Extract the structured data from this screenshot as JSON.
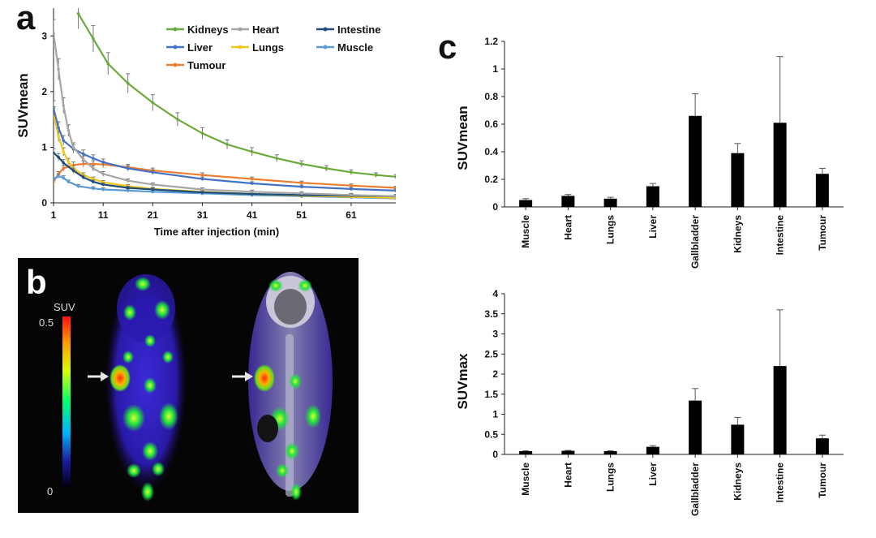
{
  "panels": {
    "a": "a",
    "b": "b",
    "c": "c"
  },
  "colors": {
    "Kidneys": "#6aaa3a",
    "Heart": "#a6a6a6",
    "Intestine": "#1f4e79",
    "Liver": "#4472c4",
    "Lungs": "#f5c518",
    "Muscle": "#5b9bd5",
    "Tumour": "#ed7d31"
  },
  "image_panel": {
    "colorbar_title": "SUV",
    "colorbar_max": "0.5",
    "colorbar_min": "0"
  },
  "chart_data": [
    {
      "id": "a",
      "type": "line",
      "title": "",
      "xlabel": "Time after injection (min)",
      "ylabel": "SUVmean",
      "xlim": [
        1,
        70
      ],
      "ylim": [
        0,
        3.5
      ],
      "xticks": [
        "1",
        "11",
        "21",
        "31",
        "41",
        "51",
        "61"
      ],
      "yticks": [
        "0",
        "1",
        "2",
        "3"
      ],
      "legend_position": "top-right",
      "series": [
        {
          "name": "Kidneys",
          "points": [
            [
              6,
              3.4
            ],
            [
              9,
              2.95
            ],
            [
              12,
              2.5
            ],
            [
              16,
              2.15
            ],
            [
              21,
              1.8
            ],
            [
              26,
              1.5
            ],
            [
              31,
              1.25
            ],
            [
              36,
              1.05
            ],
            [
              41,
              0.92
            ],
            [
              46,
              0.8
            ],
            [
              51,
              0.7
            ],
            [
              56,
              0.62
            ],
            [
              61,
              0.55
            ],
            [
              66,
              0.5
            ],
            [
              70,
              0.47
            ]
          ]
        },
        {
          "name": "Heart",
          "points": [
            [
              1,
              3.05
            ],
            [
              2,
              2.4
            ],
            [
              3,
              1.75
            ],
            [
              4,
              1.3
            ],
            [
              5,
              1.0
            ],
            [
              7,
              0.78
            ],
            [
              9,
              0.62
            ],
            [
              11,
              0.52
            ],
            [
              16,
              0.4
            ],
            [
              21,
              0.33
            ],
            [
              31,
              0.24
            ],
            [
              41,
              0.2
            ],
            [
              51,
              0.17
            ],
            [
              61,
              0.14
            ],
            [
              70,
              0.12
            ]
          ]
        },
        {
          "name": "Intestine",
          "points": [
            [
              1,
              0.9
            ],
            [
              2,
              0.82
            ],
            [
              3,
              0.72
            ],
            [
              5,
              0.58
            ],
            [
              7,
              0.46
            ],
            [
              9,
              0.38
            ],
            [
              11,
              0.33
            ],
            [
              16,
              0.27
            ],
            [
              21,
              0.24
            ],
            [
              31,
              0.19
            ],
            [
              41,
              0.16
            ],
            [
              51,
              0.14
            ],
            [
              61,
              0.13
            ],
            [
              70,
              0.12
            ]
          ]
        },
        {
          "name": "Liver",
          "points": [
            [
              1,
              1.7
            ],
            [
              2,
              1.35
            ],
            [
              3,
              1.12
            ],
            [
              5,
              0.97
            ],
            [
              7,
              0.88
            ],
            [
              9,
              0.8
            ],
            [
              11,
              0.73
            ],
            [
              16,
              0.62
            ],
            [
              21,
              0.55
            ],
            [
              31,
              0.43
            ],
            [
              41,
              0.35
            ],
            [
              51,
              0.29
            ],
            [
              61,
              0.25
            ],
            [
              70,
              0.22
            ]
          ]
        },
        {
          "name": "Lungs",
          "points": [
            [
              1,
              1.6
            ],
            [
              2,
              1.2
            ],
            [
              3,
              0.92
            ],
            [
              4,
              0.74
            ],
            [
              5,
              0.62
            ],
            [
              7,
              0.5
            ],
            [
              9,
              0.43
            ],
            [
              11,
              0.37
            ],
            [
              16,
              0.3
            ],
            [
              21,
              0.25
            ],
            [
              31,
              0.2
            ],
            [
              41,
              0.16
            ],
            [
              51,
              0.13
            ],
            [
              61,
              0.11
            ],
            [
              70,
              0.09
            ]
          ]
        },
        {
          "name": "Muscle",
          "points": [
            [
              1,
              0.42
            ],
            [
              2,
              0.48
            ],
            [
              3,
              0.45
            ],
            [
              4,
              0.38
            ],
            [
              6,
              0.3
            ],
            [
              9,
              0.26
            ],
            [
              11,
              0.24
            ],
            [
              16,
              0.22
            ],
            [
              21,
              0.2
            ],
            [
              31,
              0.17
            ],
            [
              41,
              0.14
            ],
            [
              51,
              0.12
            ],
            [
              61,
              0.1
            ],
            [
              70,
              0.08
            ]
          ]
        },
        {
          "name": "Tumour",
          "points": [
            [
              1,
              0.38
            ],
            [
              2,
              0.52
            ],
            [
              3,
              0.62
            ],
            [
              5,
              0.68
            ],
            [
              7,
              0.7
            ],
            [
              9,
              0.7
            ],
            [
              11,
              0.69
            ],
            [
              16,
              0.64
            ],
            [
              21,
              0.58
            ],
            [
              31,
              0.5
            ],
            [
              41,
              0.43
            ],
            [
              51,
              0.36
            ],
            [
              61,
              0.31
            ],
            [
              70,
              0.27
            ]
          ]
        }
      ]
    },
    {
      "id": "c-top",
      "type": "bar",
      "title": "",
      "ylabel": "SUVmean",
      "ylim": [
        0,
        1.2
      ],
      "yticks": [
        "0",
        "0.2",
        "0.4",
        "0.6",
        "0.8",
        "1",
        "1.2"
      ],
      "categories": [
        "Muscle",
        "Heart",
        "Lungs",
        "Liver",
        "Gallbladder",
        "Kidneys",
        "Intestine",
        "Tumour"
      ],
      "values": [
        0.05,
        0.08,
        0.06,
        0.15,
        0.66,
        0.39,
        0.61,
        0.24
      ],
      "errors": [
        0.01,
        0.01,
        0.01,
        0.02,
        0.16,
        0.07,
        0.48,
        0.04
      ]
    },
    {
      "id": "c-bottom",
      "type": "bar",
      "title": "",
      "ylabel": "SUVmax",
      "ylim": [
        0,
        4
      ],
      "yticks": [
        "0",
        "0.5",
        "1",
        "1.5",
        "2",
        "2.5",
        "3",
        "3.5",
        "4"
      ],
      "categories": [
        "Muscle",
        "Heart",
        "Lungs",
        "Liver",
        "Gallbladder",
        "Kidneys",
        "Intestine",
        "Tumour"
      ],
      "values": [
        0.08,
        0.09,
        0.08,
        0.19,
        1.34,
        0.74,
        2.2,
        0.4
      ],
      "errors": [
        0.01,
        0.01,
        0.01,
        0.03,
        0.3,
        0.18,
        1.4,
        0.08
      ]
    }
  ]
}
